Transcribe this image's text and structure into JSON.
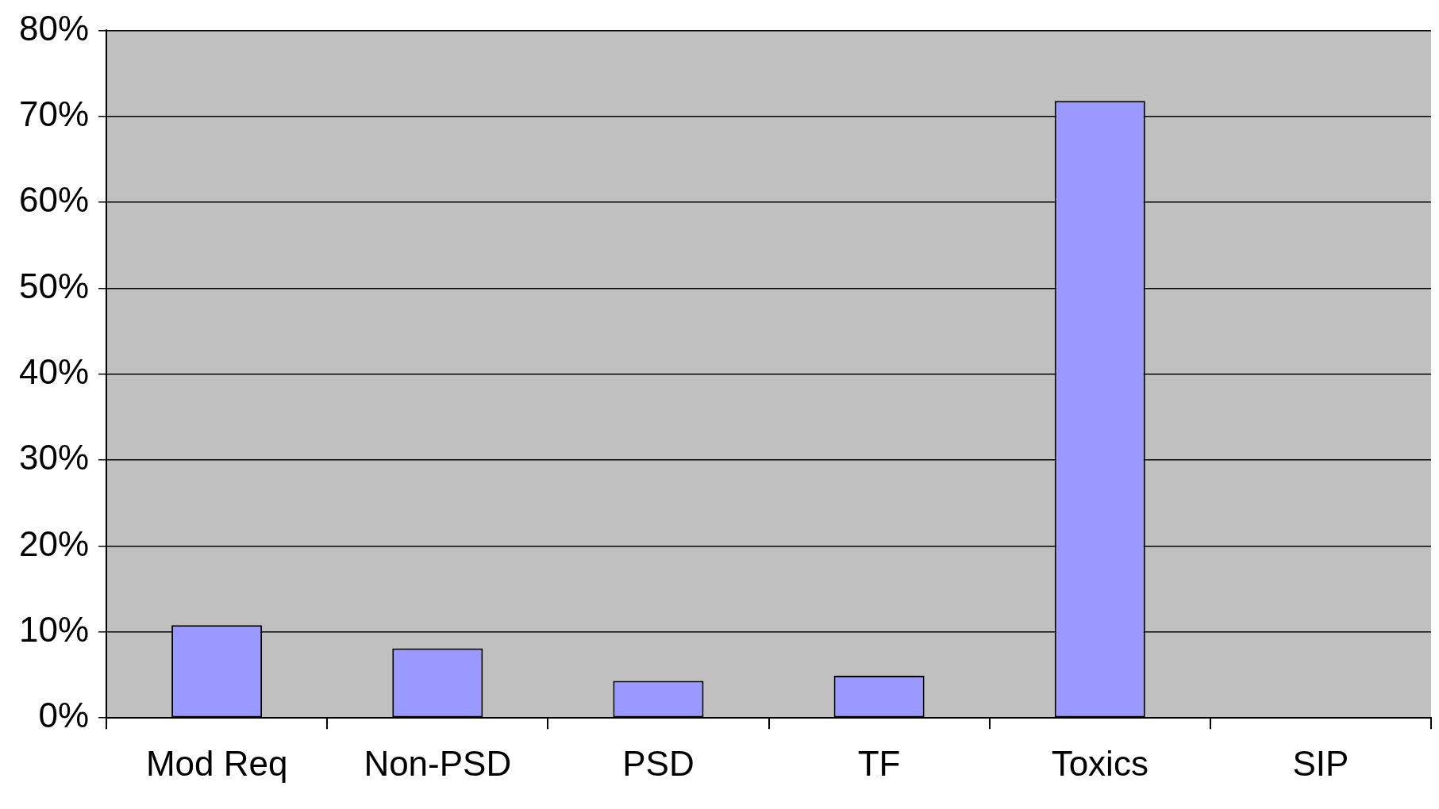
{
  "chart_data": {
    "type": "bar",
    "categories": [
      "Mod Req",
      "Non-PSD",
      "PSD",
      "TF",
      "Toxics",
      "SIP"
    ],
    "values": [
      10.8,
      8.1,
      4.3,
      4.9,
      71.8,
      0
    ],
    "color": "#9999ff",
    "ylim": [
      0,
      80
    ],
    "yticks": [
      {
        "value": 0,
        "label": "0%"
      },
      {
        "value": 10,
        "label": "10%"
      },
      {
        "value": 20,
        "label": "20%"
      },
      {
        "value": 30,
        "label": "30%"
      },
      {
        "value": 40,
        "label": "40%"
      },
      {
        "value": 50,
        "label": "50%"
      },
      {
        "value": 60,
        "label": "60%"
      },
      {
        "value": 70,
        "label": "70%"
      },
      {
        "value": 80,
        "label": "80%"
      }
    ],
    "grid": "y"
  }
}
